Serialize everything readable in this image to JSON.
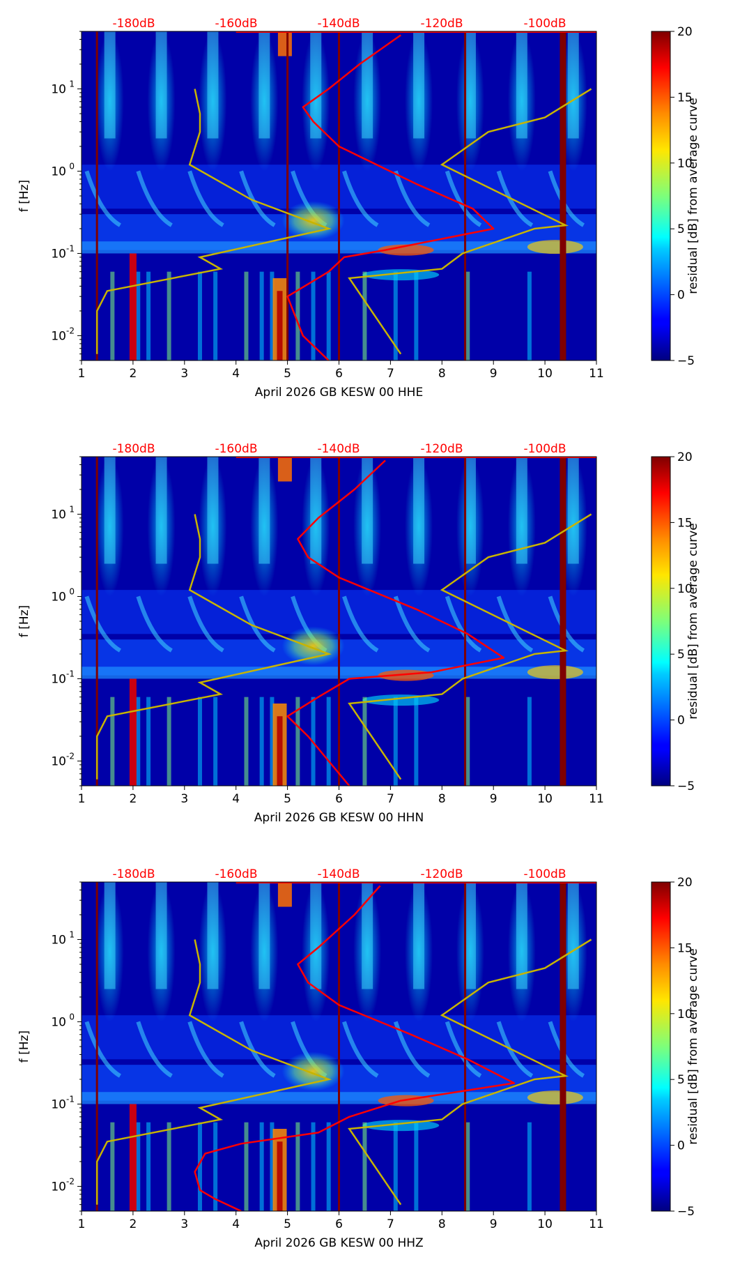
{
  "chart_data": [
    {
      "type": "heatmap",
      "xlabel": "April 2026 GB KESW 00 HHE",
      "ylabel": "f [Hz]",
      "xlim": [
        1,
        11
      ],
      "x_ticks": [
        1,
        2,
        3,
        4,
        5,
        6,
        7,
        8,
        9,
        10,
        11
      ],
      "y_log_range": [
        0.005,
        50
      ],
      "y_ticks": [
        "10^{-2}",
        "10^{-1}",
        "10^{0}",
        "10^{1}"
      ],
      "top_axis_ticks": [
        "-180dB",
        "-160dB",
        "-140dB",
        "-120dB",
        "-100dB"
      ],
      "colorbar": {
        "label": "residual [dB] from average curve",
        "range": [
          -5,
          20
        ],
        "ticks": [
          -5,
          0,
          5,
          10,
          15,
          20
        ]
      },
      "data_gap_days": [
        1.3,
        5.0,
        6.0,
        8.45,
        10.35
      ],
      "avg_noise_curve": {
        "color": "red",
        "points": [
          [
            5.8,
            0.005
          ],
          [
            5.3,
            0.01
          ],
          [
            5.0,
            0.03
          ],
          [
            5.8,
            0.06
          ],
          [
            6.1,
            0.09
          ],
          [
            6.9,
            0.11
          ],
          [
            9.0,
            0.2
          ],
          [
            8.6,
            0.35
          ],
          [
            7.5,
            0.7
          ],
          [
            6.0,
            2
          ],
          [
            5.5,
            4
          ],
          [
            5.3,
            6
          ],
          [
            5.8,
            10
          ],
          [
            6.4,
            20
          ],
          [
            7.2,
            45
          ]
        ]
      },
      "model_curve": {
        "color": "#c8b400",
        "points": [
          [
            1.3,
            0.006
          ],
          [
            1.3,
            0.02
          ],
          [
            1.5,
            0.035
          ],
          [
            3.7,
            0.065
          ],
          [
            3.3,
            0.09
          ],
          [
            5.8,
            0.2
          ],
          [
            4.3,
            0.45
          ],
          [
            3.1,
            1.2
          ],
          [
            3.3,
            3
          ],
          [
            3.3,
            5
          ],
          [
            3.2,
            10
          ]
        ]
      },
      "model_curve_right": {
        "color": "#c8b400",
        "points": [
          [
            7.2,
            0.006
          ],
          [
            6.2,
            0.05
          ],
          [
            8.0,
            0.065
          ],
          [
            8.4,
            0.1
          ],
          [
            9.8,
            0.2
          ],
          [
            10.4,
            0.22
          ],
          [
            8.0,
            1.2
          ],
          [
            8.9,
            3
          ],
          [
            10.0,
            4.5
          ],
          [
            10.9,
            10
          ]
        ]
      }
    },
    {
      "type": "heatmap",
      "xlabel": "April 2026 GB KESW 00 HHN",
      "ylabel": "f [Hz]",
      "xlim": [
        1,
        11
      ],
      "x_ticks": [
        1,
        2,
        3,
        4,
        5,
        6,
        7,
        8,
        9,
        10,
        11
      ],
      "y_log_range": [
        0.005,
        50
      ],
      "y_ticks": [
        "10^{-2}",
        "10^{-1}",
        "10^{0}",
        "10^{1}"
      ],
      "top_axis_ticks": [
        "-180dB",
        "-160dB",
        "-140dB",
        "-120dB",
        "-100dB"
      ],
      "colorbar": {
        "label": "residual [dB] from average curve",
        "range": [
          -5,
          20
        ],
        "ticks": [
          -5,
          0,
          5,
          10,
          15,
          20
        ]
      },
      "data_gap_days": [
        1.3,
        6.0,
        8.45,
        10.35
      ],
      "avg_noise_curve": {
        "color": "red",
        "points": [
          [
            6.2,
            0.005
          ],
          [
            5.8,
            0.01
          ],
          [
            5.4,
            0.02
          ],
          [
            5.0,
            0.035
          ],
          [
            5.6,
            0.06
          ],
          [
            6.2,
            0.1
          ],
          [
            7.8,
            0.12
          ],
          [
            9.2,
            0.18
          ],
          [
            8.5,
            0.35
          ],
          [
            7.5,
            0.7
          ],
          [
            6.0,
            1.7
          ],
          [
            5.4,
            3
          ],
          [
            5.2,
            5
          ],
          [
            5.6,
            9
          ],
          [
            6.3,
            20
          ],
          [
            6.9,
            45
          ]
        ]
      },
      "model_curve": {
        "color": "#c8b400",
        "points": [
          [
            1.3,
            0.006
          ],
          [
            1.3,
            0.02
          ],
          [
            1.5,
            0.035
          ],
          [
            3.7,
            0.065
          ],
          [
            3.3,
            0.09
          ],
          [
            5.8,
            0.2
          ],
          [
            4.3,
            0.45
          ],
          [
            3.1,
            1.2
          ],
          [
            3.3,
            3
          ],
          [
            3.3,
            5
          ],
          [
            3.2,
            10
          ]
        ]
      },
      "model_curve_right": {
        "color": "#c8b400",
        "points": [
          [
            7.2,
            0.006
          ],
          [
            6.2,
            0.05
          ],
          [
            8.0,
            0.065
          ],
          [
            8.4,
            0.1
          ],
          [
            9.8,
            0.2
          ],
          [
            10.4,
            0.22
          ],
          [
            8.0,
            1.2
          ],
          [
            8.9,
            3
          ],
          [
            10.0,
            4.5
          ],
          [
            10.9,
            10
          ]
        ]
      }
    },
    {
      "type": "heatmap",
      "xlabel": "April 2026 GB KESW 00 HHZ",
      "ylabel": "f [Hz]",
      "xlim": [
        1,
        11
      ],
      "x_ticks": [
        1,
        2,
        3,
        4,
        5,
        6,
        7,
        8,
        9,
        10,
        11
      ],
      "y_log_range": [
        0.005,
        50
      ],
      "y_ticks": [
        "10^{-2}",
        "10^{-1}",
        "10^{0}",
        "10^{1}"
      ],
      "top_axis_ticks": [
        "-180dB",
        "-160dB",
        "-140dB",
        "-120dB",
        "-100dB"
      ],
      "colorbar": {
        "label": "residual [dB] from average curve",
        "range": [
          -5,
          20
        ],
        "ticks": [
          -5,
          0,
          5,
          10,
          15,
          20
        ]
      },
      "data_gap_days": [
        1.3,
        6.0,
        8.45,
        10.35
      ],
      "avg_noise_curve": {
        "color": "red",
        "points": [
          [
            4.1,
            0.005
          ],
          [
            3.6,
            0.007
          ],
          [
            3.3,
            0.009
          ],
          [
            3.2,
            0.015
          ],
          [
            3.4,
            0.025
          ],
          [
            4.1,
            0.033
          ],
          [
            5.6,
            0.045
          ],
          [
            6.2,
            0.07
          ],
          [
            7.2,
            0.11
          ],
          [
            9.4,
            0.18
          ],
          [
            8.5,
            0.35
          ],
          [
            7.4,
            0.7
          ],
          [
            6.0,
            1.6
          ],
          [
            5.4,
            3
          ],
          [
            5.2,
            5
          ],
          [
            5.6,
            8
          ],
          [
            6.3,
            20
          ],
          [
            6.8,
            45
          ]
        ]
      },
      "model_curve": {
        "color": "#c8b400",
        "points": [
          [
            1.3,
            0.006
          ],
          [
            1.3,
            0.02
          ],
          [
            1.5,
            0.035
          ],
          [
            3.7,
            0.065
          ],
          [
            3.3,
            0.09
          ],
          [
            5.8,
            0.2
          ],
          [
            4.3,
            0.45
          ],
          [
            3.1,
            1.2
          ],
          [
            3.3,
            3
          ],
          [
            3.3,
            5
          ],
          [
            3.2,
            10
          ]
        ]
      },
      "model_curve_right": {
        "color": "#c8b400",
        "points": [
          [
            7.2,
            0.006
          ],
          [
            6.2,
            0.05
          ],
          [
            8.0,
            0.065
          ],
          [
            8.4,
            0.1
          ],
          [
            9.8,
            0.2
          ],
          [
            10.4,
            0.22
          ],
          [
            8.0,
            1.2
          ],
          [
            8.9,
            3
          ],
          [
            10.0,
            4.5
          ],
          [
            10.9,
            10
          ]
        ]
      }
    }
  ]
}
